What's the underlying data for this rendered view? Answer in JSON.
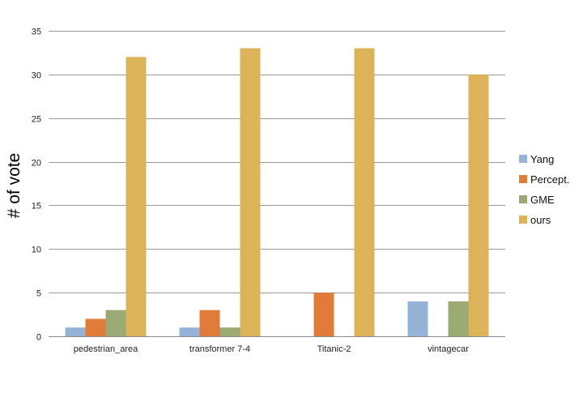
{
  "chart_data": {
    "type": "bar",
    "title": "",
    "xlabel": "",
    "ylabel": "# of vote",
    "ylim": [
      0,
      35
    ],
    "yticks": [
      0,
      5,
      10,
      15,
      20,
      25,
      30,
      35
    ],
    "grid": true,
    "legend_position": "right",
    "categories": [
      "pedestrian_area",
      "transformer 7-4",
      "Titanic-2",
      "vintagecar"
    ],
    "series": [
      {
        "name": "Yang",
        "color": "#95B3D7",
        "values": [
          1,
          1,
          0,
          4
        ]
      },
      {
        "name": "Percept.",
        "color": "#E07B39",
        "values": [
          2,
          3,
          5,
          0
        ]
      },
      {
        "name": "GME",
        "color": "#9BAA73",
        "values": [
          3,
          1,
          0,
          4
        ]
      },
      {
        "name": "ours",
        "color": "#DDB35A",
        "values": [
          32,
          33,
          33,
          30
        ]
      }
    ]
  }
}
